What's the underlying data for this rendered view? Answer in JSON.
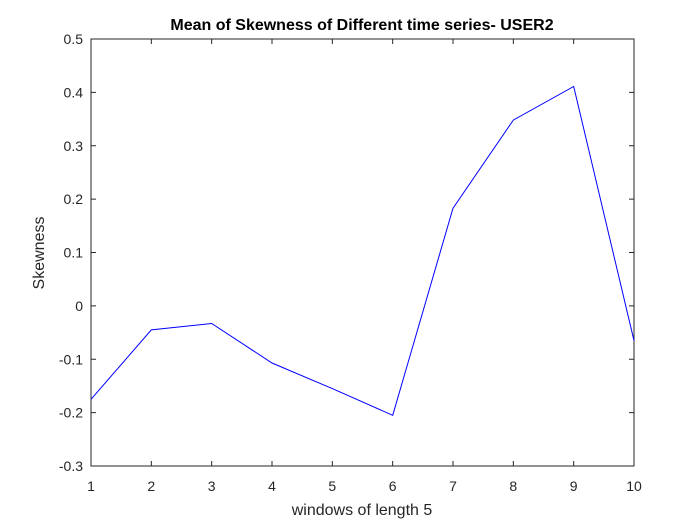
{
  "chart_data": {
    "type": "line",
    "title": "Mean of Skewness of Different time series- USER2",
    "xlabel": "windows of length 5",
    "ylabel": "Skewness",
    "x": [
      1,
      2,
      3,
      4,
      5,
      6,
      7,
      8,
      9,
      10
    ],
    "series": [
      {
        "values": [
          -0.175,
          -0.045,
          -0.033,
          -0.107,
          -0.155,
          -0.205,
          0.183,
          0.348,
          0.411,
          -0.065
        ]
      }
    ],
    "xlim": [
      1,
      10
    ],
    "ylim": [
      -0.3,
      0.5
    ],
    "xticks": [
      1,
      2,
      3,
      4,
      5,
      6,
      7,
      8,
      9,
      10
    ],
    "xtick_labels": [
      "1",
      "2",
      "3",
      "4",
      "5",
      "6",
      "7",
      "8",
      "9",
      "10"
    ],
    "yticks": [
      -0.3,
      -0.2,
      -0.1,
      0,
      0.1,
      0.2,
      0.3,
      0.4,
      0.5
    ],
    "ytick_labels": [
      "-0.3",
      "-0.2",
      "-0.1",
      "0",
      "0.1",
      "0.2",
      "0.3",
      "0.4",
      "0.5"
    ],
    "grid": false,
    "line_color": "#0000ff",
    "axis_color": "#262626"
  }
}
